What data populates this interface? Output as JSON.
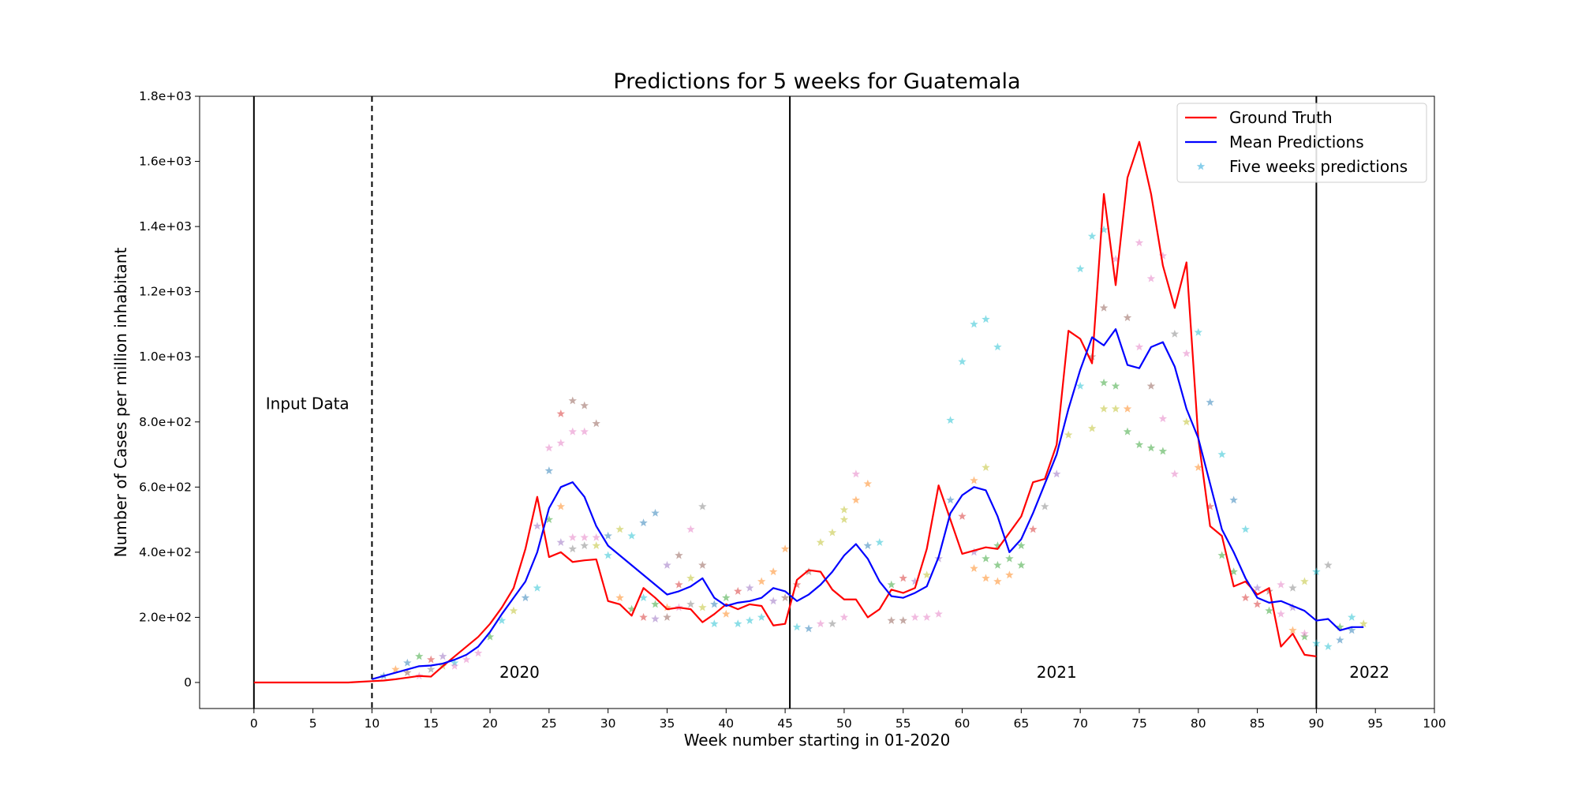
{
  "chart_data": {
    "type": "line",
    "title": "Predictions for 5 weeks for Guatemala",
    "xlabel": "Week number starting in 01-2020",
    "ylabel": "Number of Cases per million inhabitant",
    "xlim": [
      -4.6,
      100
    ],
    "ylim": [
      -80,
      1800
    ],
    "x_ticks": [
      0,
      5,
      10,
      15,
      20,
      25,
      30,
      35,
      40,
      45,
      50,
      55,
      60,
      65,
      70,
      75,
      80,
      85,
      90,
      95,
      100
    ],
    "x_tick_labels": [
      "0",
      "5",
      "10",
      "15",
      "20",
      "25",
      "30",
      "35",
      "40",
      "45",
      "50",
      "55",
      "60",
      "65",
      "70",
      "75",
      "80",
      "85",
      "90",
      "95",
      "100"
    ],
    "y_ticks": [
      0,
      200,
      400,
      600,
      800,
      1000,
      1200,
      1400,
      1600,
      1800
    ],
    "y_tick_labels": [
      "0",
      "2.0e+02",
      "4.0e+02",
      "6.0e+02",
      "8.0e+02",
      "1.0e+03",
      "1.2e+03",
      "1.4e+03",
      "1.6e+03",
      "1.8e+03"
    ],
    "legend_position": "top-right",
    "legend": [
      {
        "label": "Ground Truth",
        "kind": "line",
        "color": "#ff0000"
      },
      {
        "label": "Mean Predictions",
        "kind": "line",
        "color": "#0000ff"
      },
      {
        "label": "Five weeks predictions",
        "kind": "star",
        "color": "#87ceeb"
      }
    ],
    "vertical_lines": [
      {
        "x": 0,
        "style": "solid"
      },
      {
        "x": 10,
        "style": "dashed"
      },
      {
        "x": 45.4,
        "style": "solid"
      },
      {
        "x": 90,
        "style": "solid"
      }
    ],
    "annotations": [
      {
        "text": "Input Data",
        "x": 1,
        "y": 840
      },
      {
        "text": "2020",
        "x": 22.5,
        "y": 15
      },
      {
        "text": "2021",
        "x": 68,
        "y": 15
      },
      {
        "text": "2022",
        "x": 94.5,
        "y": 15
      }
    ],
    "series": [
      {
        "name": "Ground Truth",
        "color": "#ff0000",
        "x": [
          0,
          1,
          2,
          3,
          4,
          5,
          6,
          7,
          8,
          9,
          10,
          11,
          12,
          13,
          14,
          15,
          16,
          17,
          18,
          19,
          20,
          21,
          22,
          23,
          24,
          25,
          26,
          27,
          28,
          29,
          30,
          31,
          32,
          33,
          34,
          35,
          36,
          37,
          38,
          39,
          40,
          41,
          42,
          43,
          44,
          45,
          46,
          47,
          48,
          49,
          50,
          51,
          52,
          53,
          54,
          55,
          56,
          57,
          58,
          59,
          60,
          61,
          62,
          63,
          64,
          65,
          66,
          67,
          68,
          69,
          70,
          71,
          72,
          73,
          74,
          75,
          76,
          77,
          78,
          79,
          80,
          81,
          82,
          83,
          84,
          85,
          86,
          87,
          88,
          89,
          90
        ],
        "y": [
          0,
          0,
          0,
          0,
          0,
          0,
          0,
          0,
          0,
          2,
          4,
          6,
          10,
          15,
          20,
          18,
          50,
          80,
          110,
          140,
          180,
          230,
          290,
          410,
          570,
          385,
          400,
          370,
          375,
          378,
          250,
          240,
          205,
          290,
          260,
          225,
          230,
          225,
          185,
          210,
          240,
          225,
          240,
          235,
          175,
          180,
          315,
          345,
          340,
          285,
          255,
          255,
          200,
          225,
          285,
          275,
          290,
          410,
          605,
          500,
          395,
          405,
          415,
          410,
          460,
          510,
          615,
          625,
          730,
          1080,
          1055,
          980,
          1500,
          1220,
          1550,
          1660,
          1500,
          1280,
          1150,
          1290,
          750,
          480,
          450,
          295,
          310,
          270,
          290,
          110,
          150,
          85,
          80
        ]
      },
      {
        "name": "Mean Predictions",
        "color": "#0000ff",
        "x": [
          10,
          11,
          12,
          13,
          14,
          15,
          16,
          17,
          18,
          19,
          20,
          21,
          22,
          23,
          24,
          25,
          26,
          27,
          28,
          29,
          30,
          31,
          32,
          33,
          34,
          35,
          36,
          37,
          38,
          39,
          40,
          41,
          42,
          43,
          44,
          45,
          46,
          47,
          48,
          49,
          50,
          51,
          52,
          53,
          54,
          55,
          56,
          57,
          58,
          59,
          60,
          61,
          62,
          63,
          64,
          65,
          66,
          67,
          68,
          69,
          70,
          71,
          72,
          73,
          74,
          75,
          76,
          77,
          78,
          79,
          80,
          81,
          82,
          83,
          84,
          85,
          86,
          87,
          88,
          89,
          90,
          91,
          92,
          93,
          94
        ],
        "y": [
          10,
          20,
          30,
          40,
          50,
          52,
          58,
          70,
          85,
          110,
          155,
          210,
          260,
          310,
          400,
          535,
          600,
          615,
          570,
          480,
          420,
          390,
          360,
          330,
          300,
          270,
          280,
          295,
          320,
          260,
          235,
          245,
          250,
          260,
          290,
          280,
          250,
          270,
          300,
          340,
          390,
          425,
          380,
          310,
          265,
          260,
          275,
          295,
          385,
          520,
          575,
          600,
          590,
          510,
          400,
          440,
          520,
          610,
          700,
          840,
          960,
          1060,
          1035,
          1085,
          975,
          965,
          1030,
          1045,
          970,
          840,
          750,
          610,
          470,
          400,
          320,
          260,
          245,
          250,
          235,
          220,
          190,
          195,
          160,
          170,
          170
        ]
      }
    ],
    "scatter": {
      "name": "Five weeks predictions",
      "marker": "star",
      "opacity": 0.5,
      "colors": [
        "#1f77b4",
        "#ff7f0e",
        "#2ca02c",
        "#d62728",
        "#9467bd",
        "#8c564b",
        "#e377c2",
        "#7f7f7f",
        "#bcbd22",
        "#17becf"
      ],
      "points": [
        [
          11,
          20,
          0
        ],
        [
          12,
          40,
          1
        ],
        [
          13,
          60,
          0
        ],
        [
          14,
          80,
          2
        ],
        [
          15,
          70,
          3
        ],
        [
          16,
          80,
          4
        ],
        [
          13,
          30,
          5
        ],
        [
          14,
          20,
          6
        ],
        [
          15,
          40,
          7
        ],
        [
          16,
          50,
          8
        ],
        [
          17,
          60,
          9
        ],
        [
          17,
          50,
          6
        ],
        [
          18,
          70,
          6
        ],
        [
          19,
          90,
          6
        ],
        [
          20,
          140,
          2
        ],
        [
          21,
          190,
          9
        ],
        [
          22,
          220,
          8
        ],
        [
          23,
          260,
          0
        ],
        [
          24,
          290,
          9
        ],
        [
          24,
          480,
          4
        ],
        [
          25,
          720,
          6
        ],
        [
          26,
          735,
          6
        ],
        [
          26,
          825,
          3
        ],
        [
          27,
          865,
          5
        ],
        [
          28,
          850,
          5
        ],
        [
          29,
          795,
          5
        ],
        [
          27,
          770,
          6
        ],
        [
          28,
          770,
          6
        ],
        [
          25,
          650,
          0
        ],
        [
          26,
          540,
          1
        ],
        [
          25,
          500,
          2
        ],
        [
          26,
          430,
          4
        ],
        [
          27,
          445,
          6
        ],
        [
          28,
          445,
          6
        ],
        [
          29,
          445,
          6
        ],
        [
          27,
          410,
          7
        ],
        [
          28,
          420,
          7
        ],
        [
          29,
          420,
          8
        ],
        [
          30,
          390,
          9
        ],
        [
          30,
          450,
          0
        ],
        [
          31,
          470,
          8
        ],
        [
          32,
          450,
          9
        ],
        [
          33,
          490,
          0
        ],
        [
          34,
          520,
          0
        ],
        [
          31,
          260,
          1
        ],
        [
          32,
          225,
          2
        ],
        [
          33,
          200,
          3
        ],
        [
          34,
          195,
          4
        ],
        [
          35,
          200,
          5
        ],
        [
          36,
          230,
          6
        ],
        [
          37,
          240,
          7
        ],
        [
          38,
          230,
          8
        ],
        [
          39,
          180,
          9
        ],
        [
          35,
          360,
          4
        ],
        [
          36,
          390,
          5
        ],
        [
          37,
          470,
          6
        ],
        [
          38,
          540,
          7
        ],
        [
          33,
          260,
          9
        ],
        [
          34,
          240,
          2
        ],
        [
          35,
          230,
          1
        ],
        [
          36,
          300,
          3
        ],
        [
          37,
          320,
          8
        ],
        [
          38,
          360,
          5
        ],
        [
          39,
          240,
          0
        ],
        [
          40,
          210,
          1
        ],
        [
          41,
          180,
          9
        ],
        [
          42,
          190,
          9
        ],
        [
          43,
          200,
          9
        ],
        [
          40,
          260,
          2
        ],
        [
          41,
          280,
          3
        ],
        [
          42,
          290,
          4
        ],
        [
          43,
          310,
          1
        ],
        [
          44,
          340,
          1
        ],
        [
          45,
          410,
          1
        ],
        [
          44,
          250,
          4
        ],
        [
          45,
          260,
          5
        ],
        [
          46,
          170,
          9
        ],
        [
          47,
          165,
          0
        ],
        [
          48,
          180,
          6
        ],
        [
          49,
          180,
          7
        ],
        [
          50,
          200,
          6
        ],
        [
          46,
          300,
          3
        ],
        [
          47,
          340,
          5
        ],
        [
          48,
          430,
          8
        ],
        [
          49,
          460,
          8
        ],
        [
          50,
          500,
          8
        ],
        [
          51,
          560,
          1
        ],
        [
          52,
          610,
          1
        ],
        [
          51,
          640,
          6
        ],
        [
          50,
          530,
          8
        ],
        [
          52,
          420,
          0
        ],
        [
          53,
          430,
          9
        ],
        [
          54,
          300,
          2
        ],
        [
          55,
          320,
          3
        ],
        [
          56,
          310,
          4
        ],
        [
          57,
          200,
          6
        ],
        [
          58,
          210,
          6
        ],
        [
          54,
          190,
          5
        ],
        [
          55,
          190,
          5
        ],
        [
          56,
          200,
          6
        ],
        [
          57,
          330,
          8
        ],
        [
          58,
          380,
          4
        ],
        [
          59,
          560,
          0
        ],
        [
          59,
          805,
          9
        ],
        [
          60,
          985,
          9
        ],
        [
          61,
          1100,
          9
        ],
        [
          62,
          1115,
          9
        ],
        [
          63,
          1030,
          9
        ],
        [
          60,
          510,
          3
        ],
        [
          61,
          620,
          1
        ],
        [
          62,
          660,
          8
        ],
        [
          63,
          420,
          2
        ],
        [
          61,
          350,
          1
        ],
        [
          62,
          320,
          1
        ],
        [
          63,
          310,
          1
        ],
        [
          64,
          330,
          1
        ],
        [
          65,
          360,
          2
        ],
        [
          61,
          400,
          4
        ],
        [
          62,
          380,
          2
        ],
        [
          63,
          360,
          2
        ],
        [
          64,
          380,
          2
        ],
        [
          65,
          420,
          2
        ],
        [
          66,
          470,
          3
        ],
        [
          67,
          540,
          7
        ],
        [
          68,
          640,
          4
        ],
        [
          69,
          760,
          8
        ],
        [
          70,
          910,
          9
        ],
        [
          71,
          1000,
          5
        ],
        [
          70,
          1270,
          9
        ],
        [
          71,
          1370,
          9
        ],
        [
          72,
          1390,
          9
        ],
        [
          72,
          1150,
          5
        ],
        [
          73,
          1300,
          6
        ],
        [
          74,
          1120,
          5
        ],
        [
          75,
          1030,
          6
        ],
        [
          71,
          780,
          8
        ],
        [
          72,
          840,
          8
        ],
        [
          73,
          840,
          8
        ],
        [
          74,
          840,
          1
        ],
        [
          72,
          920,
          2
        ],
        [
          73,
          910,
          2
        ],
        [
          74,
          770,
          2
        ],
        [
          75,
          730,
          2
        ],
        [
          76,
          720,
          2
        ],
        [
          77,
          710,
          2
        ],
        [
          75,
          1350,
          6
        ],
        [
          76,
          1240,
          6
        ],
        [
          77,
          1310,
          6
        ],
        [
          78,
          1070,
          7
        ],
        [
          79,
          1010,
          6
        ],
        [
          80,
          1075,
          9
        ],
        [
          76,
          910,
          5
        ],
        [
          77,
          810,
          6
        ],
        [
          78,
          640,
          6
        ],
        [
          79,
          800,
          8
        ],
        [
          80,
          660,
          1
        ],
        [
          81,
          860,
          0
        ],
        [
          82,
          700,
          9
        ],
        [
          83,
          560,
          0
        ],
        [
          84,
          470,
          9
        ],
        [
          81,
          540,
          3
        ],
        [
          82,
          390,
          2
        ],
        [
          83,
          340,
          2
        ],
        [
          84,
          260,
          3
        ],
        [
          85,
          240,
          3
        ],
        [
          85,
          290,
          4
        ],
        [
          86,
          280,
          5
        ],
        [
          87,
          300,
          6
        ],
        [
          88,
          290,
          7
        ],
        [
          89,
          310,
          8
        ],
        [
          90,
          340,
          9
        ],
        [
          91,
          360,
          7
        ],
        [
          86,
          220,
          2
        ],
        [
          87,
          210,
          6
        ],
        [
          88,
          230,
          4
        ],
        [
          89,
          140,
          2
        ],
        [
          90,
          120,
          9
        ],
        [
          91,
          110,
          9
        ],
        [
          92,
          130,
          0
        ],
        [
          93,
          160,
          0
        ],
        [
          94,
          180,
          8
        ],
        [
          92,
          170,
          2
        ],
        [
          93,
          200,
          9
        ],
        [
          88,
          160,
          1
        ],
        [
          89,
          150,
          6
        ]
      ]
    }
  }
}
